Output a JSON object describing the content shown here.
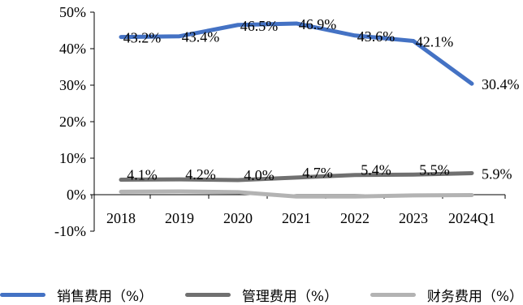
{
  "chart_data": {
    "type": "line",
    "categories": [
      "2018",
      "2019",
      "2020",
      "2021",
      "2022",
      "2023",
      "2024Q1"
    ],
    "ylim": [
      -10,
      50
    ],
    "yticks": [
      -10,
      0,
      10,
      20,
      30,
      40,
      50
    ],
    "ytick_labels": [
      "-10%",
      "0%",
      "10%",
      "20%",
      "30%",
      "40%",
      "50%"
    ],
    "title": "",
    "xlabel": "",
    "ylabel": "",
    "grid": false,
    "legend_position": "bottom",
    "series": [
      {
        "name": "销售费用（%）",
        "color": "#4472C4",
        "values": [
          43.2,
          43.4,
          46.5,
          46.9,
          43.6,
          42.1,
          30.4
        ],
        "labels": [
          "43.2%",
          "43.4%",
          "46.5%",
          "46.9%",
          "43.6%",
          "42.1%",
          "30.4%"
        ]
      },
      {
        "name": "管理费用（%）",
        "color": "#707070",
        "values": [
          4.1,
          4.2,
          4.0,
          4.7,
          5.4,
          5.5,
          5.9
        ],
        "labels": [
          "4.1%",
          "4.2%",
          "4.0%",
          "4.7%",
          "5.4%",
          "5.5%",
          "5.9%"
        ]
      },
      {
        "name": "财务费用（%）",
        "color": "#B3B3B3",
        "values": [
          0.8,
          0.9,
          0.7,
          -0.5,
          -0.5,
          -0.2,
          -0.1
        ],
        "labels": []
      }
    ]
  }
}
